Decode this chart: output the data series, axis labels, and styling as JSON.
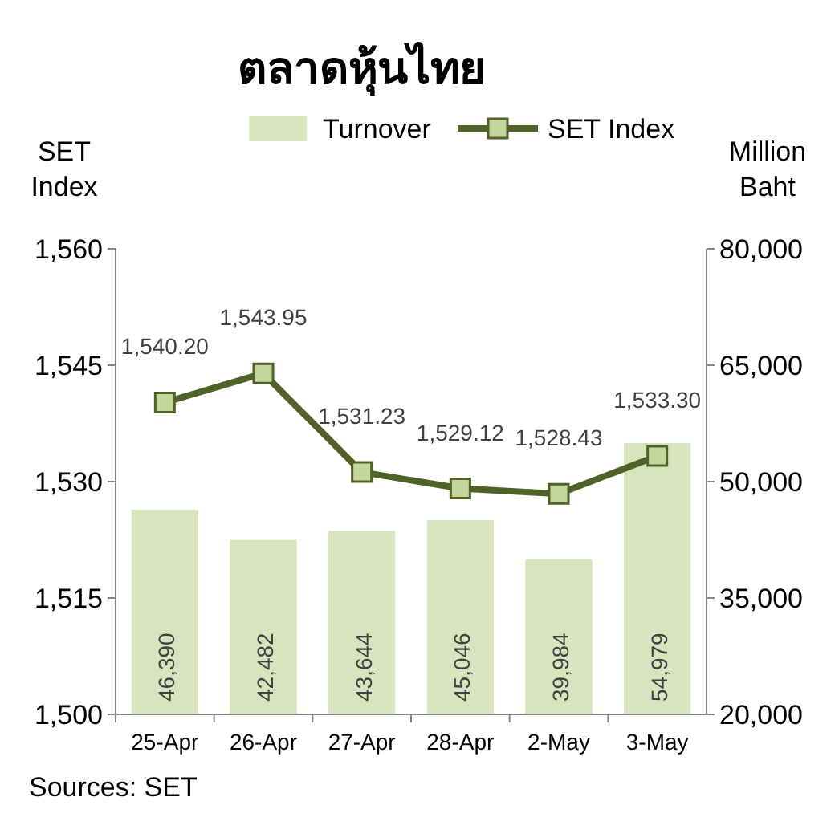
{
  "chart_data": {
    "type": "bar",
    "title": "ตลาดหุ้นไทย",
    "ylabel": "SET Index",
    "y2label": "Million Baht",
    "categories": [
      "25-Apr",
      "26-Apr",
      "27-Apr",
      "28-Apr",
      "2-May",
      "3-May"
    ],
    "series": [
      {
        "name": "Turnover",
        "axis": "y2",
        "color": "#d7e4bd",
        "values": [
          46390,
          42482,
          43644,
          45046,
          39984,
          54979
        ],
        "value_labels": [
          "46,390",
          "42,482",
          "43,644",
          "45,046",
          "39,984",
          "54,979"
        ]
      },
      {
        "name": "SET Index",
        "type": "line",
        "axis": "y",
        "color": "#4f6228",
        "values": [
          1540.2,
          1543.95,
          1531.23,
          1529.12,
          1528.43,
          1533.3
        ],
        "value_labels": [
          "1,540.20",
          "1,543.95",
          "1,531.23",
          "1,529.12",
          "1,528.43",
          "1,533.30"
        ],
        "marker": "square"
      }
    ],
    "ylim": [
      1500,
      1560
    ],
    "yticks": [
      {
        "value": 1500,
        "label": "1,500"
      },
      {
        "value": 1515,
        "label": "1,515"
      },
      {
        "value": 1530,
        "label": "1,530"
      },
      {
        "value": 1545,
        "label": "1,545"
      },
      {
        "value": 1560,
        "label": "1,560"
      }
    ],
    "y2lim": [
      20000,
      80000
    ],
    "y2ticks": [
      {
        "value": 20000,
        "label": "20,000"
      },
      {
        "value": 35000,
        "label": "35,000"
      },
      {
        "value": 50000,
        "label": "50,000"
      },
      {
        "value": 65000,
        "label": "65,000"
      },
      {
        "value": 80000,
        "label": "80,000"
      }
    ],
    "legend": "top",
    "annotations": [
      "Sources: SET"
    ]
  }
}
